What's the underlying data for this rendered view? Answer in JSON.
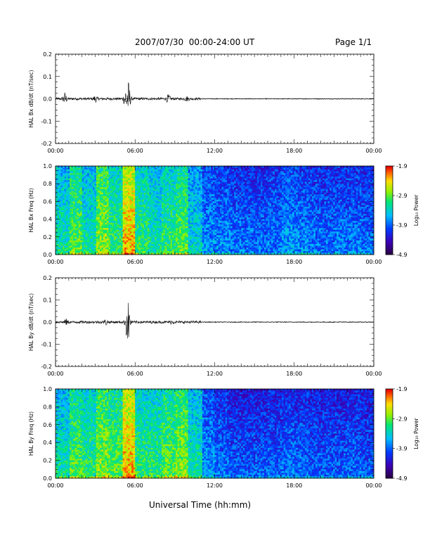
{
  "header": {
    "title": "2007/07/30  00:00-24:00 UT",
    "page": "Page 1/1"
  },
  "footer": {
    "xlabel": "Universal Time (hh:mm)"
  },
  "chart_data": [
    {
      "type": "line",
      "ylabel": "HAL Bx dB/dt (nT/sec)",
      "xticks": [
        "00:00",
        "06:00",
        "12:00",
        "18:00",
        "00:00"
      ],
      "yticks": [
        "0.2",
        "0.1",
        "0.0",
        "-0.1",
        "-0.2"
      ],
      "ylim": [
        -0.2,
        0.2
      ],
      "xlim_hours": [
        0,
        24
      ],
      "bursts": [
        {
          "hour": 0.7,
          "amp": 0.025
        },
        {
          "hour": 3.0,
          "amp": 0.012
        },
        {
          "hour": 5.3,
          "amp": 0.05
        },
        {
          "hour": 5.5,
          "amp": -0.07
        },
        {
          "hour": 8.5,
          "amp": 0.015
        },
        {
          "hour": 9.9,
          "amp": 0.008
        }
      ]
    },
    {
      "type": "heatmap",
      "ylabel": "HAL Bx Freq (Hz)",
      "xticks": [
        "00:00",
        "06:00",
        "12:00",
        "18:00",
        "00:00"
      ],
      "yticks": [
        "1.0",
        "0.8",
        "0.6",
        "0.4",
        "0.2",
        "0.0"
      ],
      "ylim": [
        0,
        1.0
      ],
      "colorbar": {
        "label": "Log₁₀ Power",
        "ticks": [
          "-1.9",
          "-2.9",
          "-3.9",
          "-4.9"
        ],
        "range": [
          -4.9,
          -1.9
        ]
      },
      "intensity_by_hour": [
        0.45,
        0.55,
        0.45,
        0.6,
        0.5,
        0.75,
        0.5,
        0.45,
        0.5,
        0.55,
        0.4,
        0.3,
        0.28,
        0.26,
        0.25,
        0.25,
        0.26,
        0.3,
        0.28,
        0.26,
        0.25,
        0.26,
        0.26,
        0.25
      ]
    },
    {
      "type": "line",
      "ylabel": "HAL By dB/dt (nT/sec)",
      "xticks": [
        "00:00",
        "06:00",
        "12:00",
        "18:00",
        "00:00"
      ],
      "yticks": [
        "0.2",
        "0.1",
        "0.0",
        "-0.1",
        "-0.2"
      ],
      "ylim": [
        -0.2,
        0.2
      ],
      "xlim_hours": [
        0,
        24
      ],
      "bursts": [
        {
          "hour": 0.8,
          "amp": 0.01
        },
        {
          "hour": 3.8,
          "amp": 0.01
        },
        {
          "hour": 5.4,
          "amp": 0.06
        },
        {
          "hour": 5.5,
          "amp": -0.05
        },
        {
          "hour": 8.8,
          "amp": 0.006
        }
      ]
    },
    {
      "type": "heatmap",
      "ylabel": "HAL By Freq (Hz)",
      "xticks": [
        "00:00",
        "06:00",
        "12:00",
        "18:00",
        "00:00"
      ],
      "yticks": [
        "1.0",
        "0.8",
        "0.6",
        "0.4",
        "0.2",
        "0.0"
      ],
      "ylim": [
        0,
        1.0
      ],
      "colorbar": {
        "label": "Log₁₀ Power",
        "ticks": [
          "-1.9",
          "-2.9",
          "-3.9",
          "-4.9"
        ],
        "range": [
          -4.9,
          -1.9
        ]
      },
      "intensity_by_hour": [
        0.45,
        0.55,
        0.5,
        0.6,
        0.55,
        0.75,
        0.5,
        0.5,
        0.55,
        0.6,
        0.45,
        0.3,
        0.25,
        0.22,
        0.22,
        0.22,
        0.23,
        0.25,
        0.24,
        0.22,
        0.22,
        0.22,
        0.23,
        0.22
      ]
    }
  ]
}
